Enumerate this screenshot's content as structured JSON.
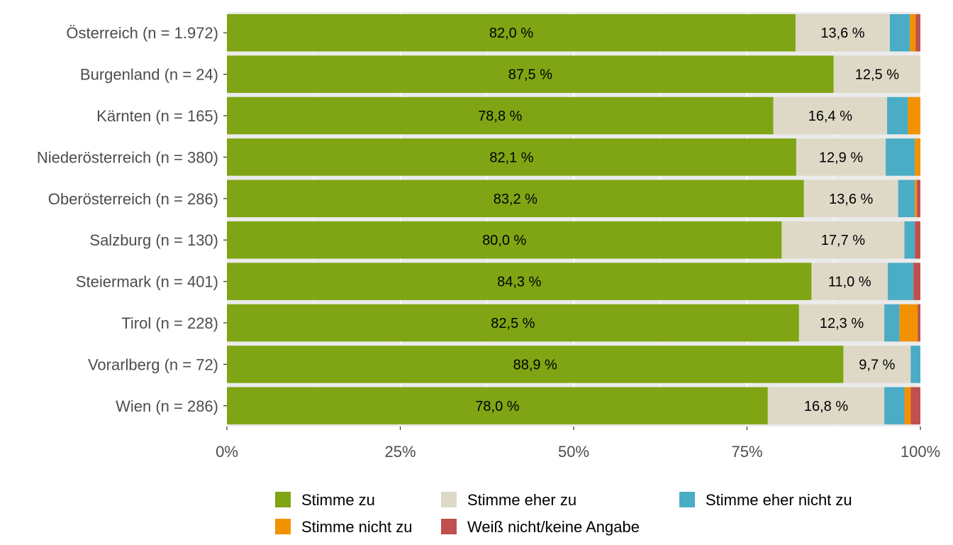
{
  "chart_data": {
    "type": "bar",
    "orientation": "horizontal",
    "stacked": "percent",
    "categories": [
      "Österreich (n = 1.972)",
      "Burgenland (n = 24)",
      "Kärnten (n = 165)",
      "Niederösterreich (n = 380)",
      "Oberösterreich (n = 286)",
      "Salzburg (n = 130)",
      "Steiermark (n = 401)",
      "Tirol (n = 228)",
      "Vorarlberg (n = 72)",
      "Wien (n = 286)"
    ],
    "series": [
      {
        "name": "Stimme zu",
        "color": "#7fa514",
        "values": [
          82.0,
          87.5,
          78.8,
          82.1,
          83.2,
          80.0,
          84.3,
          82.5,
          88.9,
          78.0
        ],
        "labels": [
          "82,0 %",
          "87,5 %",
          "78,8 %",
          "82,1 %",
          "83,2 %",
          "80,0 %",
          "84,3 %",
          "82,5 %",
          "88,9 %",
          "78,0 %"
        ]
      },
      {
        "name": "Stimme eher zu",
        "color": "#ded9c7",
        "values": [
          13.6,
          12.5,
          16.4,
          12.9,
          13.6,
          17.7,
          11.0,
          12.3,
          9.7,
          16.8
        ],
        "labels": [
          "13,6 %",
          "12,5 %",
          "16,4 %",
          "12,9 %",
          "13,6 %",
          "17,7 %",
          "11,0 %",
          "12,3 %",
          "9,7 %",
          "16,8 %"
        ]
      },
      {
        "name": "Stimme eher nicht zu",
        "color": "#4bacc6",
        "values": [
          2.9,
          0,
          3.0,
          4.2,
          2.4,
          1.5,
          3.7,
          2.2,
          1.4,
          2.9
        ]
      },
      {
        "name": "Stimme nicht zu",
        "color": "#f39200",
        "values": [
          0.8,
          0,
          1.8,
          0.8,
          0.3,
          0,
          0,
          2.6,
          0,
          0.9
        ]
      },
      {
        "name": "Weiß nicht/keine Angabe",
        "color": "#c0504d",
        "values": [
          0.7,
          0,
          0,
          0,
          0.5,
          0.8,
          1.0,
          0.4,
          0,
          1.4
        ]
      }
    ],
    "x_ticks": [
      "0%",
      "25%",
      "50%",
      "75%",
      "100%"
    ],
    "xlim": [
      0,
      100
    ],
    "grid": true,
    "legend_position": "bottom",
    "title": "",
    "xlabel": "",
    "ylabel": ""
  }
}
